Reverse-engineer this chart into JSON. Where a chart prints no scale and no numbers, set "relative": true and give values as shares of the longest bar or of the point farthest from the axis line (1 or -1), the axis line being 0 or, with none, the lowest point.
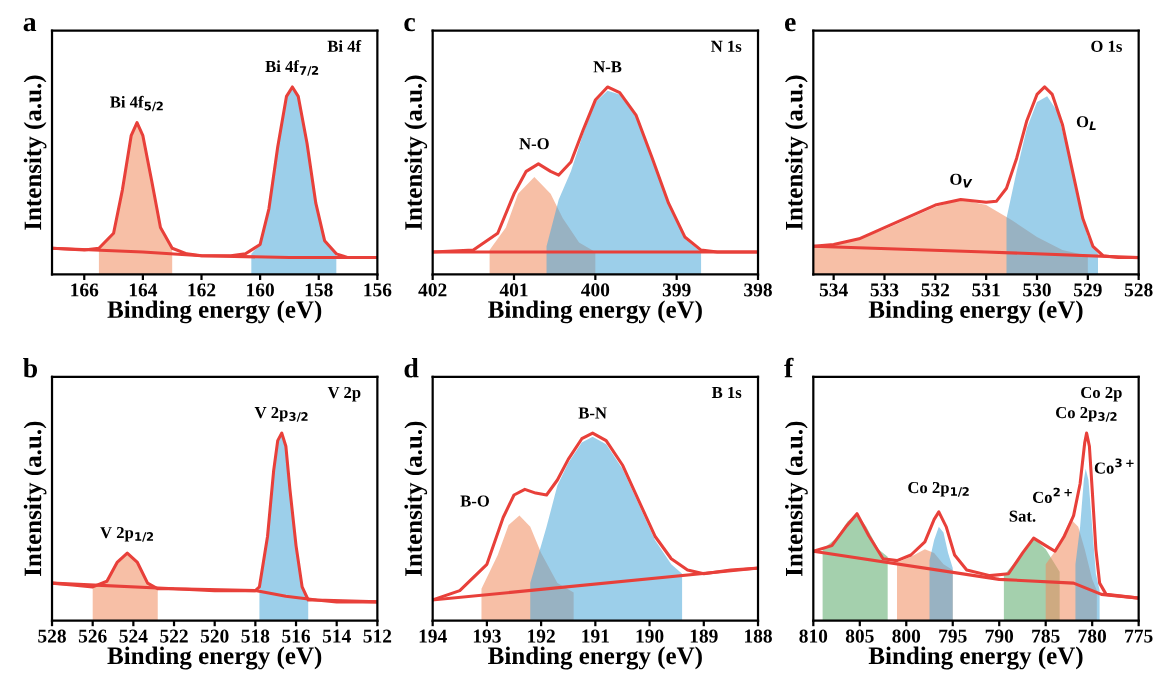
{
  "chart_data": [
    {
      "type": "area",
      "title": "a",
      "xlabel": "Binding energy (eV)",
      "ylabel": "Intensity (a.u.)",
      "relative": true,
      "xlim": [
        167.1,
        156
      ],
      "xticks": [
        166,
        164,
        162,
        160,
        158,
        156
      ],
      "annotations": [
        "Bi 4f",
        {
          "text": "Bi 4f$_{5/2}$",
          "x": 164.2,
          "y": 0.81
        },
        {
          "text": "Bi 4f$_{7/2}$",
          "x": 158.9,
          "y": 1.0
        }
      ],
      "series": [
        {
          "type": "area",
          "color": "#f08a5d",
          "x": [
            165.5,
            165,
            164.7,
            164.4,
            164.2,
            164.0,
            163.7,
            163.4,
            163
          ],
          "values": [
            0.14,
            0.22,
            0.45,
            0.74,
            0.81,
            0.74,
            0.5,
            0.25,
            0.14
          ]
        },
        {
          "type": "area",
          "color": "#4aa8d8",
          "x": [
            160.3,
            160,
            159.7,
            159.4,
            159.1,
            158.9,
            158.7,
            158.4,
            158.1,
            157.8,
            157.4
          ],
          "values": [
            0.11,
            0.16,
            0.35,
            0.68,
            0.95,
            1.0,
            0.95,
            0.7,
            0.38,
            0.18,
            0.11
          ]
        },
        {
          "type": "line",
          "color": "#e8403a",
          "x": [
            167.1,
            166,
            165.5,
            165,
            164.7,
            164.4,
            164.2,
            164.0,
            163.7,
            163.4,
            163,
            162.5,
            162,
            161,
            160.5,
            160,
            159.7,
            159.4,
            159.1,
            158.9,
            158.7,
            158.4,
            158.1,
            157.8,
            157.4,
            157,
            156
          ],
          "values": [
            0.14,
            0.13,
            0.14,
            0.22,
            0.45,
            0.74,
            0.81,
            0.74,
            0.5,
            0.25,
            0.14,
            0.11,
            0.1,
            0.1,
            0.11,
            0.16,
            0.35,
            0.68,
            0.95,
            1.0,
            0.95,
            0.7,
            0.38,
            0.18,
            0.11,
            0.09,
            0.09
          ]
        },
        {
          "type": "line",
          "color": "#e8403a",
          "x": [
            167.1,
            164,
            162,
            159,
            156
          ],
          "values": [
            0.14,
            0.12,
            0.1,
            0.09,
            0.09
          ]
        }
      ]
    },
    {
      "type": "area",
      "title": "c",
      "xlabel": "Binding energy (eV)",
      "ylabel": "Intensity (a.u.)",
      "relative": true,
      "xlim": [
        402,
        398
      ],
      "xticks": [
        402,
        401,
        400,
        399,
        398
      ],
      "annotations": [
        "N 1s",
        {
          "text": "N-O",
          "x": 400.75,
          "y": 0.59
        },
        {
          "text": "N-B",
          "x": 399.85,
          "y": 1.0
        }
      ],
      "series": [
        {
          "type": "area",
          "color": "#f08a5d",
          "x": [
            401.3,
            401.1,
            400.95,
            400.75,
            400.55,
            400.4,
            400.2,
            400.0
          ],
          "values": [
            0.13,
            0.25,
            0.43,
            0.52,
            0.43,
            0.3,
            0.17,
            0.12
          ]
        },
        {
          "type": "area",
          "color": "#4aa8d8",
          "x": [
            400.6,
            400.45,
            400.3,
            400.15,
            400,
            399.85,
            399.7,
            399.5,
            399.3,
            399.1,
            398.9,
            398.7
          ],
          "values": [
            0.15,
            0.4,
            0.55,
            0.75,
            0.92,
            0.98,
            0.96,
            0.84,
            0.61,
            0.37,
            0.19,
            0.12
          ]
        },
        {
          "type": "line",
          "color": "#e8403a",
          "x": [
            402,
            401.5,
            401.2,
            401.0,
            400.85,
            400.7,
            400.55,
            400.45,
            400.3,
            400.15,
            400,
            399.85,
            399.7,
            399.5,
            399.3,
            399.1,
            398.9,
            398.7,
            398.5,
            398
          ],
          "values": [
            0.12,
            0.13,
            0.22,
            0.43,
            0.55,
            0.59,
            0.55,
            0.53,
            0.6,
            0.77,
            0.93,
            1.0,
            0.97,
            0.85,
            0.62,
            0.38,
            0.2,
            0.13,
            0.12,
            0.12
          ]
        },
        {
          "type": "line",
          "color": "#e8403a",
          "x": [
            402,
            398
          ],
          "values": [
            0.12,
            0.12
          ]
        }
      ]
    },
    {
      "type": "area",
      "title": "e",
      "xlabel": "Binding energy (eV)",
      "ylabel": "Intensity (a.u.)",
      "relative": true,
      "xlim": [
        534.4,
        528
      ],
      "xticks": [
        534,
        533,
        532,
        531,
        530,
        529,
        528
      ],
      "annotations": [
        "O 1s",
        {
          "text": "O$_{V}$",
          "x": 531.5,
          "y": 0.4
        },
        "O$_{L}$"
      ],
      "series": [
        {
          "type": "area",
          "color": "#f08a5d",
          "x": [
            534.4,
            534,
            533.5,
            533,
            532.5,
            532,
            531.5,
            531,
            530.5,
            530,
            529.5,
            529
          ],
          "values": [
            0.15,
            0.16,
            0.19,
            0.24,
            0.3,
            0.36,
            0.4,
            0.37,
            0.29,
            0.2,
            0.13,
            0.1
          ]
        },
        {
          "type": "area",
          "color": "#4aa8d8",
          "x": [
            530.6,
            530.4,
            530.2,
            530,
            529.8,
            529.6,
            529.4,
            529.2,
            529,
            528.8
          ],
          "values": [
            0.3,
            0.55,
            0.78,
            0.92,
            0.95,
            0.87,
            0.66,
            0.4,
            0.2,
            0.11
          ]
        },
        {
          "type": "line",
          "color": "#e8403a",
          "x": [
            534.4,
            534,
            533.5,
            533,
            532.5,
            532,
            531.5,
            531,
            530.8,
            530.6,
            530.4,
            530.2,
            530.0,
            529.85,
            529.7,
            529.5,
            529.3,
            529.1,
            528.9,
            528.7,
            528.4,
            528
          ],
          "values": [
            0.15,
            0.16,
            0.19,
            0.25,
            0.31,
            0.37,
            0.4,
            0.385,
            0.39,
            0.46,
            0.62,
            0.82,
            0.96,
            1.0,
            0.96,
            0.8,
            0.55,
            0.3,
            0.15,
            0.1,
            0.09,
            0.09
          ]
        },
        {
          "type": "line",
          "color": "#e8403a",
          "x": [
            534.4,
            531,
            528
          ],
          "values": [
            0.15,
            0.12,
            0.09
          ]
        }
      ]
    },
    {
      "type": "area",
      "title": "b",
      "xlabel": "Binding energy (eV)",
      "ylabel": "Intensity (a.u.)",
      "relative": true,
      "xlim": [
        528,
        512
      ],
      "xticks": [
        528,
        526,
        524,
        522,
        520,
        518,
        516,
        514,
        512
      ],
      "annotations": [
        "V 2p",
        {
          "text": "V 2p$_{1/2}$",
          "x": 524.3,
          "y": 0.36
        },
        {
          "text": "V 2p$_{3/2}$",
          "x": 516.7,
          "y": 1.0
        }
      ],
      "series": [
        {
          "type": "area",
          "color": "#f08a5d",
          "x": [
            526,
            525.3,
            524.8,
            524.3,
            523.8,
            523.3,
            522.8
          ],
          "values": [
            0.18,
            0.21,
            0.31,
            0.36,
            0.31,
            0.2,
            0.17
          ]
        },
        {
          "type": "area",
          "color": "#4aa8d8",
          "x": [
            517.8,
            517.4,
            517.1,
            516.9,
            516.7,
            516.5,
            516.3,
            516,
            515.7,
            515.4
          ],
          "values": [
            0.18,
            0.45,
            0.8,
            0.96,
            1.0,
            0.93,
            0.7,
            0.4,
            0.18,
            0.11
          ]
        },
        {
          "type": "line",
          "color": "#e8403a",
          "x": [
            528,
            527,
            526,
            525.3,
            524.8,
            524.3,
            523.8,
            523.3,
            522.8,
            522,
            520,
            518,
            517.8,
            517.4,
            517.1,
            516.9,
            516.7,
            516.5,
            516.3,
            516,
            515.7,
            515.4,
            515,
            514,
            512
          ],
          "values": [
            0.2,
            0.19,
            0.18,
            0.21,
            0.31,
            0.36,
            0.31,
            0.2,
            0.17,
            0.17,
            0.16,
            0.16,
            0.18,
            0.45,
            0.8,
            0.96,
            1.0,
            0.93,
            0.7,
            0.4,
            0.18,
            0.11,
            0.11,
            0.1,
            0.1
          ]
        },
        {
          "type": "line",
          "color": "#e8403a",
          "x": [
            528,
            522,
            518,
            516.5,
            515,
            512
          ],
          "values": [
            0.2,
            0.17,
            0.16,
            0.13,
            0.11,
            0.1
          ]
        }
      ]
    },
    {
      "type": "area",
      "title": "d",
      "xlabel": "Binding energy (eV)",
      "ylabel": "Intensity (a.u.)",
      "relative": true,
      "xlim": [
        194,
        188
      ],
      "xticks": [
        194,
        193,
        192,
        191,
        190,
        189,
        188
      ],
      "annotations": [
        "B 1s",
        {
          "text": "B-O",
          "x": 192.4,
          "y": 0.56
        },
        {
          "text": "B-N",
          "x": 191.05,
          "y": 1.0
        }
      ],
      "series": [
        {
          "type": "area",
          "color": "#f08a5d",
          "x": [
            193.1,
            192.8,
            192.6,
            192.4,
            192.2,
            192.0,
            191.7,
            191.4
          ],
          "values": [
            0.17,
            0.35,
            0.51,
            0.56,
            0.5,
            0.36,
            0.2,
            0.15
          ]
        },
        {
          "type": "area",
          "color": "#4aa8d8",
          "x": [
            192.2,
            191.9,
            191.7,
            191.5,
            191.25,
            191.05,
            190.8,
            190.5,
            190.2,
            189.9,
            189.6,
            189.4
          ],
          "values": [
            0.2,
            0.5,
            0.72,
            0.84,
            0.95,
            0.98,
            0.94,
            0.81,
            0.62,
            0.43,
            0.3,
            0.25
          ]
        },
        {
          "type": "line",
          "color": "#e8403a",
          "x": [
            194,
            193.5,
            193.0,
            192.7,
            192.5,
            192.3,
            192.1,
            191.9,
            191.7,
            191.5,
            191.25,
            191.05,
            190.8,
            190.5,
            190.2,
            189.9,
            189.6,
            189.3,
            189,
            188.5,
            188
          ],
          "values": [
            0.11,
            0.16,
            0.3,
            0.55,
            0.67,
            0.7,
            0.68,
            0.67,
            0.75,
            0.86,
            0.97,
            1.0,
            0.96,
            0.83,
            0.64,
            0.45,
            0.33,
            0.27,
            0.25,
            0.27,
            0.28
          ]
        },
        {
          "type": "line",
          "color": "#e8403a",
          "x": [
            194,
            188
          ],
          "values": [
            0.11,
            0.28
          ]
        }
      ]
    },
    {
      "type": "area",
      "title": "f",
      "xlabel": "Binding energy (eV)",
      "ylabel": "Intensity (a.u.)",
      "relative": true,
      "xlim": [
        810,
        775
      ],
      "xticks": [
        810,
        805,
        800,
        795,
        790,
        785,
        780,
        775
      ],
      "annotations": [
        "Co 2p",
        {
          "text": "Co 2p$_{1/2}$",
          "x": 796.5,
          "y": 0.6
        },
        {
          "text": "Co 2p$_{3/2}$",
          "x": 780.6,
          "y": 1.0
        },
        {
          "text": "Sat.",
          "x": 787.5,
          "y": 0.45
        },
        "Co$^{2+}$",
        "Co$^{3+}$"
      ],
      "series": [
        {
          "type": "area",
          "color": "#5aaa6a",
          "x": [
            809,
            807.5,
            806.3,
            805.3,
            804.3,
            803,
            802
          ],
          "values": [
            0.38,
            0.44,
            0.53,
            0.57,
            0.5,
            0.38,
            0.34
          ]
        },
        {
          "type": "area",
          "color": "#f08a5d",
          "x": [
            801,
            799.5,
            798,
            797,
            796,
            795
          ],
          "values": [
            0.31,
            0.34,
            0.38,
            0.36,
            0.3,
            0.27
          ]
        },
        {
          "type": "area",
          "color": "#4aa8d8",
          "x": [
            797.5,
            797,
            796.5,
            796,
            795.5,
            795
          ],
          "values": [
            0.32,
            0.43,
            0.5,
            0.47,
            0.36,
            0.28
          ]
        },
        {
          "type": "area",
          "color": "#5aaa6a",
          "x": [
            789.5,
            788,
            786.3,
            785,
            784,
            783.5
          ],
          "values": [
            0.24,
            0.33,
            0.44,
            0.38,
            0.3,
            0.26
          ]
        },
        {
          "type": "area",
          "color": "#f08a5d",
          "x": [
            785,
            784,
            783,
            782.3,
            781.5,
            780.8,
            780,
            779.5
          ],
          "values": [
            0.3,
            0.37,
            0.47,
            0.54,
            0.5,
            0.38,
            0.22,
            0.16
          ]
        },
        {
          "type": "area",
          "color": "#4aa8d8",
          "x": [
            781.8,
            781.3,
            780.9,
            780.7,
            780.4,
            780,
            779.6,
            779.2
          ],
          "values": [
            0.3,
            0.5,
            0.75,
            0.81,
            0.75,
            0.5,
            0.25,
            0.16
          ]
        },
        {
          "type": "line",
          "color": "#e8403a",
          "x": [
            810,
            808,
            806.5,
            805.3,
            804,
            802.5,
            801,
            799.5,
            798,
            797,
            796.5,
            795.7,
            794.8,
            793.5,
            791,
            789,
            787.5,
            786.3,
            785,
            784,
            783,
            782,
            781.3,
            780.8,
            780.6,
            780.3,
            780,
            779.6,
            779.2,
            778.5,
            775
          ],
          "values": [
            0.37,
            0.4,
            0.5,
            0.57,
            0.45,
            0.33,
            0.32,
            0.35,
            0.42,
            0.54,
            0.58,
            0.5,
            0.35,
            0.27,
            0.24,
            0.25,
            0.36,
            0.44,
            0.4,
            0.37,
            0.45,
            0.56,
            0.73,
            0.95,
            1.0,
            0.93,
            0.7,
            0.38,
            0.2,
            0.14,
            0.12
          ]
        },
        {
          "type": "line",
          "color": "#e8403a",
          "x": [
            810,
            790,
            782,
            779,
            775
          ],
          "values": [
            0.37,
            0.22,
            0.2,
            0.14,
            0.12
          ]
        }
      ]
    }
  ]
}
